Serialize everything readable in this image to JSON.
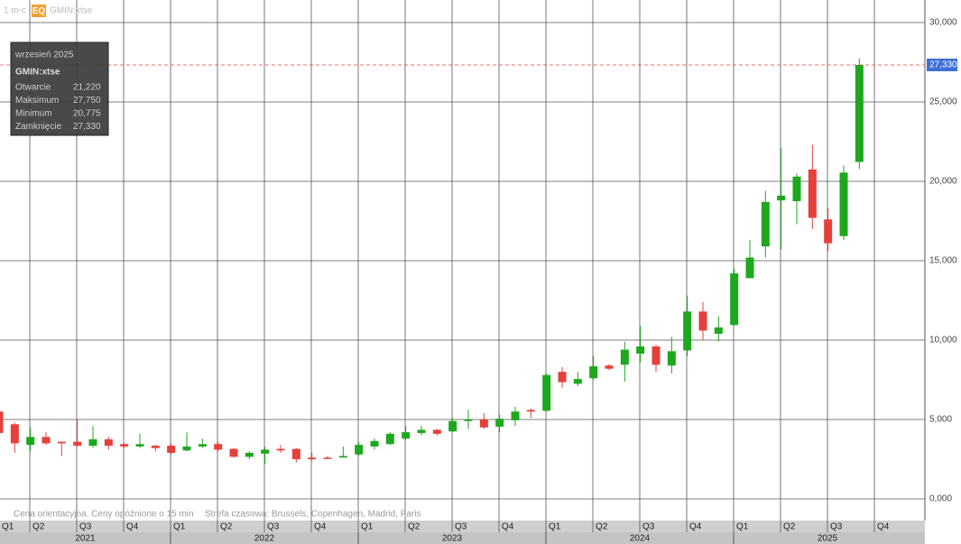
{
  "chart_data": {
    "type": "candlestick",
    "header": {
      "interval": "1 m-c",
      "badge": "EQ",
      "symbol": "GMIN:xtse"
    },
    "ylim": [
      -1.364,
      31.42
    ],
    "yticks": [
      {
        "value": 0,
        "label": "0,000"
      },
      {
        "value": 5,
        "label": "5,000"
      },
      {
        "value": 10,
        "label": "10,000"
      },
      {
        "value": 15,
        "label": "15,000"
      },
      {
        "value": 20,
        "label": "20,000"
      },
      {
        "value": 25,
        "label": "25,000"
      },
      {
        "value": 30,
        "label": "30,000"
      }
    ],
    "quarters": [
      "Q1",
      "Q2",
      "Q3",
      "Q4",
      "Q1",
      "Q2",
      "Q3",
      "Q4",
      "Q1",
      "Q2",
      "Q3",
      "Q4",
      "Q1",
      "Q2",
      "Q3",
      "Q4",
      "Q1",
      "Q2",
      "Q3",
      "Q4"
    ],
    "years": [
      "2021",
      "2022",
      "2023",
      "2024",
      "2025"
    ],
    "up_color": "#1ea81e",
    "down_color": "#e5403b",
    "grid": true,
    "open": [
      5.5,
      4.7,
      3.4,
      3.9,
      3.6,
      3.6,
      3.35,
      3.75,
      3.45,
      3.3,
      3.35,
      3.35,
      3.05,
      3.3,
      3.45,
      3.15,
      2.65,
      2.85,
      3.15,
      3.15,
      2.6,
      2.6,
      2.6,
      2.8,
      3.3,
      3.45,
      3.8,
      4.15,
      4.35,
      4.25,
      4.9,
      5.0,
      4.55,
      4.95,
      5.6,
      5.55,
      8.0,
      7.25,
      7.6,
      8.4,
      8.45,
      9.15,
      9.6,
      8.4,
      9.35,
      11.8,
      10.4,
      10.95,
      13.9,
      15.9,
      18.8,
      18.75,
      20.75,
      17.6,
      16.55,
      21.22
    ],
    "high": [
      7.8,
      4.8,
      4.5,
      4.2,
      3.6,
      5.0,
      4.6,
      3.9,
      3.5,
      4.1,
      3.4,
      3.5,
      4.2,
      3.8,
      3.6,
      3.2,
      3.0,
      3.3,
      3.4,
      3.2,
      2.9,
      2.7,
      3.3,
      3.6,
      3.8,
      4.2,
      4.6,
      4.6,
      4.4,
      5.1,
      5.6,
      5.4,
      5.3,
      5.8,
      5.7,
      7.9,
      8.3,
      8.0,
      9.0,
      8.5,
      9.9,
      10.9,
      9.7,
      10.2,
      12.8,
      12.4,
      11.5,
      14.5,
      16.3,
      19.4,
      22.1,
      20.5,
      22.3,
      18.3,
      21.0,
      27.75
    ],
    "low": [
      4.0,
      2.9,
      3.0,
      3.4,
      2.7,
      3.3,
      3.2,
      3.1,
      3.2,
      3.2,
      3.0,
      2.8,
      3.0,
      3.2,
      3.0,
      2.6,
      2.5,
      2.2,
      2.9,
      2.3,
      2.4,
      2.5,
      2.6,
      2.7,
      3.1,
      3.4,
      3.7,
      4.0,
      4.0,
      4.2,
      4.4,
      4.4,
      4.2,
      4.6,
      5.1,
      5.5,
      7.0,
      7.1,
      7.5,
      8.1,
      7.4,
      8.6,
      8.0,
      7.9,
      9.0,
      10.0,
      9.9,
      10.9,
      13.9,
      15.2,
      15.7,
      17.3,
      17.0,
      15.6,
      16.3,
      20.775
    ],
    "close": [
      4.15,
      3.5,
      3.9,
      3.5,
      3.5,
      3.35,
      3.75,
      3.35,
      3.3,
      3.45,
      3.2,
      2.9,
      3.3,
      3.45,
      3.1,
      2.65,
      2.9,
      3.1,
      3.05,
      2.5,
      2.5,
      2.55,
      2.7,
      3.4,
      3.65,
      4.1,
      4.2,
      4.35,
      4.1,
      4.9,
      5.0,
      4.5,
      5.05,
      5.5,
      5.5,
      7.8,
      7.35,
      7.55,
      8.35,
      8.2,
      9.4,
      9.6,
      8.45,
      9.3,
      11.8,
      10.6,
      10.8,
      14.2,
      15.2,
      18.7,
      19.1,
      20.3,
      17.7,
      16.1,
      20.55,
      27.33
    ],
    "last_price": {
      "value": 27.33,
      "label": "27,330"
    },
    "tooltip": {
      "title": "wrzesień 2025",
      "symbol": "GMIN:xtse",
      "rows": [
        {
          "label": "Otwarcie",
          "value": "21,220"
        },
        {
          "label": "Maksimum",
          "value": "27,750"
        },
        {
          "label": "Minimum",
          "value": "20,775"
        },
        {
          "label": "Zamknięcie",
          "value": "27,330"
        }
      ]
    },
    "notes": [
      "Cena orientacyjna. Ceny opóźnione o 15 min",
      "Strefa czasowa: Brussels, Copenhagen, Madrid, Paris"
    ]
  }
}
